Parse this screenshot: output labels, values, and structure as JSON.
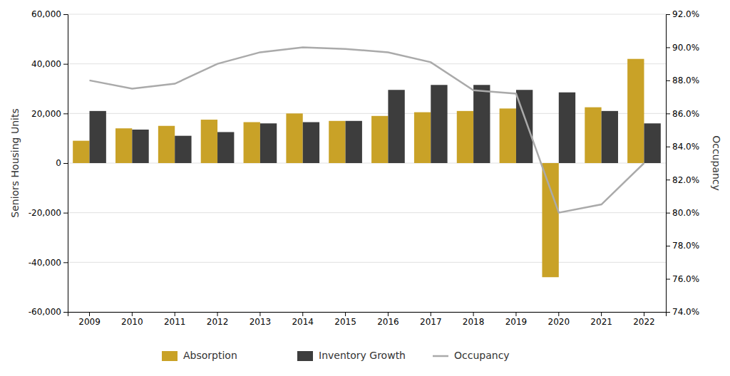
{
  "chart_data": {
    "type": "bar",
    "categories": [
      "2009",
      "2010",
      "2011",
      "2012",
      "2013",
      "2014",
      "2015",
      "2016",
      "2017",
      "2018",
      "2019",
      "2020",
      "2021",
      "2022"
    ],
    "series": [
      {
        "name": "Absorption",
        "color": "#C9A227",
        "values": [
          9000,
          14000,
          15000,
          17500,
          16500,
          20000,
          17000,
          19000,
          20500,
          21000,
          22000,
          -46000,
          22500,
          42000
        ]
      },
      {
        "name": "Inventory Growth",
        "color": "#3D3D3D",
        "values": [
          21000,
          13500,
          11000,
          12500,
          16000,
          16500,
          17000,
          29500,
          31500,
          31500,
          29500,
          28500,
          21000,
          16000
        ]
      },
      {
        "name": "Occupancy",
        "color": "#AAAAAA",
        "type": "line",
        "axis": "y2",
        "values": [
          0.88,
          0.875,
          0.878,
          0.89,
          0.897,
          0.9,
          0.899,
          0.897,
          0.891,
          0.874,
          0.872,
          0.8,
          0.805,
          0.83
        ]
      }
    ],
    "ylabel": "Seniors Housing Units",
    "y2label": "Occupancy",
    "ylim": [
      -60000,
      60000
    ],
    "yticks": [
      {
        "value": -60000,
        "label": "-60,000"
      },
      {
        "value": -40000,
        "label": "-40,000"
      },
      {
        "value": -20000,
        "label": "-20,000"
      },
      0,
      {
        "value": 20000,
        "label": "20,000"
      },
      {
        "value": 40000,
        "label": "40,000"
      },
      {
        "value": 60000,
        "label": "60,000"
      }
    ],
    "y2lim": [
      0.74,
      0.92
    ],
    "y2ticks": [
      {
        "value": 0.74,
        "label": "74.0%"
      },
      {
        "value": 0.76,
        "label": "76.0%"
      },
      {
        "value": 0.78,
        "label": "78.0%"
      },
      {
        "value": 0.8,
        "label": "80.0%"
      },
      {
        "value": 0.82,
        "label": "82.0%"
      },
      {
        "value": 0.84,
        "label": "84.0%"
      },
      {
        "value": 0.86,
        "label": "86.0%"
      },
      {
        "value": 0.88,
        "label": "88.0%"
      },
      {
        "value": 0.9,
        "label": "90.0%"
      },
      {
        "value": 0.92,
        "label": "92.0%"
      }
    ],
    "grid": true,
    "legend": "bottom"
  }
}
